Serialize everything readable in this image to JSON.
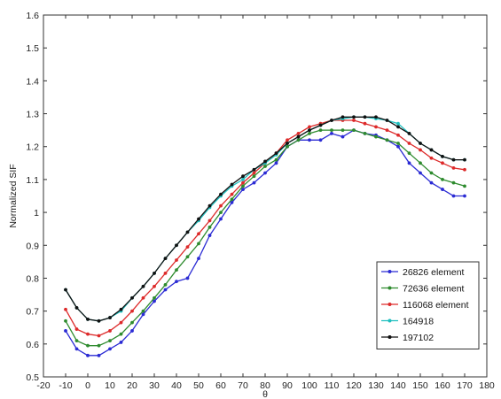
{
  "chart_data": {
    "type": "line",
    "xlabel": "θ",
    "ylabel": "Normalized SIF",
    "xlim": [
      -20,
      180
    ],
    "ylim": [
      0.5,
      1.6
    ],
    "xticks": [
      -20,
      -10,
      0,
      10,
      20,
      30,
      40,
      50,
      60,
      70,
      80,
      90,
      100,
      110,
      120,
      130,
      140,
      150,
      160,
      170,
      180
    ],
    "yticks": [
      "0.5",
      "0.6",
      "0.7",
      "0.8",
      "0.9",
      "1",
      "1.1",
      "1.2",
      "1.3",
      "1.4",
      "1.5",
      "1.6"
    ],
    "grid": false,
    "legend_position": "bottom-right",
    "x": [
      -10,
      -5,
      0,
      5,
      10,
      15,
      20,
      25,
      30,
      35,
      40,
      45,
      50,
      55,
      60,
      65,
      70,
      75,
      80,
      85,
      90,
      95,
      100,
      105,
      110,
      115,
      120,
      125,
      130,
      135,
      140,
      145,
      150,
      155,
      160,
      165,
      170
    ],
    "series": [
      {
        "name": "26826 element",
        "color": "#2b2bd4",
        "values": [
          0.64,
          0.585,
          0.565,
          0.565,
          0.585,
          0.605,
          0.64,
          0.69,
          0.73,
          0.765,
          0.79,
          0.8,
          0.86,
          0.93,
          0.98,
          1.03,
          1.07,
          1.09,
          1.12,
          1.15,
          1.2,
          1.22,
          1.22,
          1.22,
          1.24,
          1.23,
          1.25,
          1.24,
          1.235,
          1.22,
          1.2,
          1.15,
          1.12,
          1.09,
          1.07,
          1.05,
          1.05
        ]
      },
      {
        "name": "72636 element",
        "color": "#2e8b2e",
        "values": [
          0.67,
          0.61,
          0.595,
          0.595,
          0.61,
          0.63,
          0.665,
          0.7,
          0.74,
          0.78,
          0.825,
          0.865,
          0.905,
          0.955,
          1.0,
          1.04,
          1.08,
          1.11,
          1.14,
          1.16,
          1.2,
          1.22,
          1.24,
          1.25,
          1.25,
          1.25,
          1.25,
          1.24,
          1.23,
          1.22,
          1.21,
          1.18,
          1.15,
          1.12,
          1.1,
          1.09,
          1.08
        ]
      },
      {
        "name": "116068 element",
        "color": "#dd2a2a",
        "values": [
          0.705,
          0.645,
          0.63,
          0.625,
          0.64,
          0.665,
          0.7,
          0.74,
          0.775,
          0.815,
          0.855,
          0.895,
          0.935,
          0.975,
          1.02,
          1.055,
          1.09,
          1.12,
          1.15,
          1.18,
          1.22,
          1.24,
          1.26,
          1.27,
          1.28,
          1.28,
          1.28,
          1.27,
          1.26,
          1.25,
          1.235,
          1.21,
          1.19,
          1.165,
          1.15,
          1.135,
          1.13
        ]
      },
      {
        "name": "164918",
        "color": "#1fbfbf",
        "values": [
          0.765,
          0.71,
          0.675,
          0.67,
          0.68,
          0.7,
          0.74,
          0.775,
          0.815,
          0.86,
          0.9,
          0.94,
          0.975,
          1.015,
          1.05,
          1.08,
          1.1,
          1.13,
          1.15,
          1.175,
          1.21,
          1.23,
          1.25,
          1.265,
          1.28,
          1.285,
          1.29,
          1.29,
          1.285,
          1.28,
          1.27,
          1.24,
          1.21,
          1.19,
          1.17,
          1.16,
          1.16
        ]
      },
      {
        "name": "197102",
        "color": "#111111",
        "values": [
          0.765,
          0.71,
          0.675,
          0.67,
          0.68,
          0.705,
          0.74,
          0.775,
          0.815,
          0.86,
          0.9,
          0.94,
          0.98,
          1.02,
          1.055,
          1.085,
          1.11,
          1.13,
          1.155,
          1.18,
          1.21,
          1.23,
          1.25,
          1.265,
          1.28,
          1.29,
          1.29,
          1.29,
          1.29,
          1.28,
          1.26,
          1.24,
          1.21,
          1.19,
          1.17,
          1.16,
          1.16
        ]
      }
    ]
  }
}
